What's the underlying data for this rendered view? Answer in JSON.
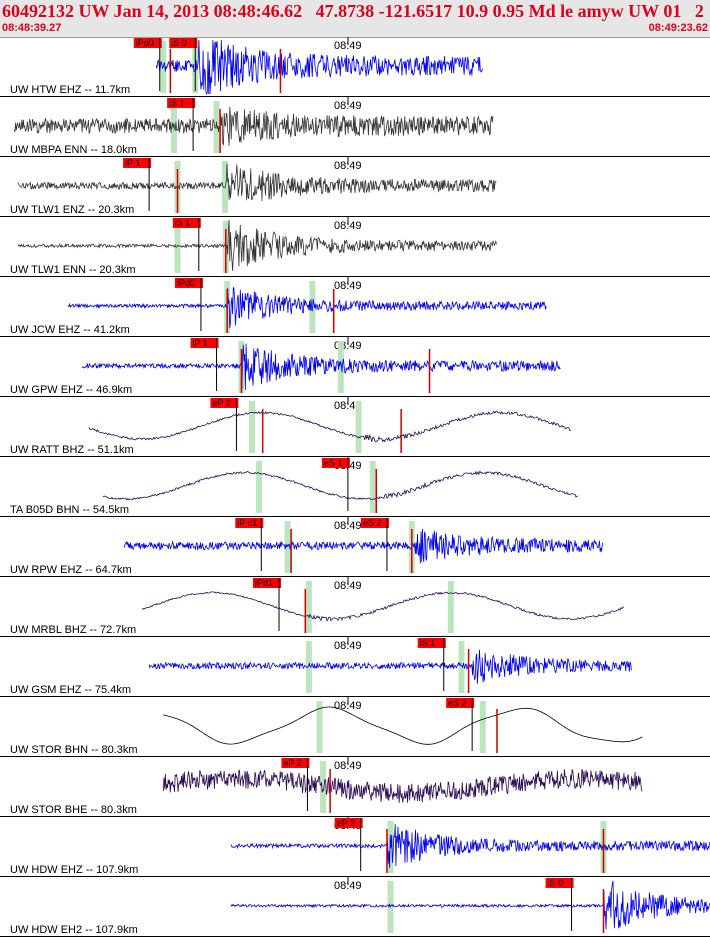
{
  "header": {
    "title": "60492132 UW Jan 14, 2013 08:48:46.62   47.8738 -121.6517 10.9 0.95 Md le amyw UW 01   2",
    "start_time": "08:48:39.27",
    "end_time": "08:49:23.62"
  },
  "colors": {
    "header_text": "#e0001a",
    "header_bg": "#e6e6e6",
    "pick_box": "#ff0000",
    "pick_line": "#cc0000",
    "window": "#bde5bd",
    "trace_blue": "#0000ee",
    "trace_purple": "#2a0a55",
    "trace_gray": "#333333"
  },
  "chart_data": {
    "type": "line",
    "x_axis": {
      "start": "08:48:39.27",
      "end": "08:49:23.62",
      "minute_tick": "08:49"
    },
    "traces": [
      {
        "label": "UW HTW EHZ -- 11.7km",
        "color": "blue",
        "freq": "high",
        "s": 0.22,
        "e": 0.68,
        "onset": 0.28,
        "amp": 0.18,
        "env": 0.55,
        "picks": [
          {
            "label": "iPd0",
            "t": 0.225
          },
          {
            "label": "iS 0",
            "t": 0.275
          }
        ],
        "windows": [
          0.23,
          0.275
        ],
        "drops": [
          0.24,
          0.395
        ]
      },
      {
        "label": "UW MBPA ENN -- 18.0km",
        "color": "gray",
        "freq": "high",
        "s": 0.02,
        "e": 0.695,
        "onset": 0.31,
        "amp": 0.35,
        "env": 0.35,
        "picks": [
          {
            "label": "iS 1",
            "t": 0.272
          }
        ],
        "windows": [
          0.245,
          0.305
        ],
        "drops": [
          0.31
        ]
      },
      {
        "label": "UW TLW1 ENZ -- 20.3km",
        "color": "gray",
        "freq": "high",
        "s": 0.025,
        "e": 0.7,
        "onset": 0.318,
        "amp": 0.14,
        "env": 0.4,
        "picks": [
          {
            "label": "iP 1",
            "t": 0.21
          }
        ],
        "windows": [
          0.25,
          0.317
        ],
        "drops": [
          0.25
        ]
      },
      {
        "label": "UW TLW1 ENN -- 20.3km",
        "color": "gray",
        "freq": "high",
        "s": 0.025,
        "e": 0.7,
        "onset": 0.32,
        "amp": 0.06,
        "env": 0.45,
        "picks": [
          {
            "label": "iS 1",
            "t": 0.28
          }
        ],
        "windows": [
          0.25,
          0.318
        ],
        "drops": [
          0.318
        ]
      },
      {
        "label": "UW JCW EHZ -- 41.2km",
        "color": "blue",
        "freq": "high",
        "s": 0.095,
        "e": 0.77,
        "onset": 0.32,
        "amp": 0.08,
        "env": 0.35,
        "picks": [
          {
            "label": "iPd0",
            "t": 0.283
          }
        ],
        "windows": [
          0.32,
          0.44
        ],
        "drops": [
          0.32,
          0.47
        ]
      },
      {
        "label": "UW GPW EHZ -- 46.9km",
        "color": "blue",
        "freq": "high",
        "s": 0.115,
        "e": 0.79,
        "onset": 0.34,
        "amp": 0.1,
        "env": 0.4,
        "picks": [
          {
            "label": "iP 1",
            "t": 0.305
          }
        ],
        "windows": [
          0.34,
          0.48
        ],
        "drops": [
          0.34,
          0.605
        ]
      },
      {
        "label": "UW RATT BHZ -- 51.1km",
        "color": "purple",
        "freq": "low",
        "s": 0.125,
        "e": 0.805,
        "onset": 0.51,
        "amp": 0.3,
        "env": 0.45,
        "picks": [
          {
            "label": "eP 2",
            "t": 0.333
          }
        ],
        "windows": [
          0.355,
          0.505
        ],
        "drops": [
          0.37,
          0.565
        ]
      },
      {
        "label": "TA B05D BHN -- 54.5km",
        "color": "purple",
        "freq": "low",
        "s": 0.145,
        "e": 0.815,
        "onset": 0.54,
        "amp": 0.4,
        "env": 0.35,
        "picks": [
          {
            "label": "eS 1",
            "t": 0.49
          }
        ],
        "windows": [
          0.365,
          0.525
        ],
        "drops": [
          0.53
        ]
      },
      {
        "label": "UW RPW EHZ -- 64.7km",
        "color": "blue",
        "freq": "high",
        "s": 0.175,
        "e": 0.85,
        "onset": 0.585,
        "amp": 0.22,
        "env": 0.3,
        "picks": [
          {
            "label": "iP c1",
            "t": 0.368
          },
          {
            "label": "eS 2",
            "t": 0.545
          }
        ],
        "windows": [
          0.405,
          0.58
        ],
        "drops": [
          0.41,
          0.58
        ]
      },
      {
        "label": "UW MRBL BHZ -- 72.7km",
        "color": "purple",
        "freq": "low",
        "s": 0.2,
        "e": 0.88,
        "onset": 0.43,
        "amp": 0.35,
        "env": 0.3,
        "picks": [
          {
            "label": "iPd1",
            "t": 0.393
          }
        ],
        "windows": [
          0.435,
          0.635
        ],
        "drops": [
          0.43
        ]
      },
      {
        "label": "UW GSM EHZ -- 75.4km",
        "color": "blue",
        "freq": "high",
        "s": 0.21,
        "e": 0.89,
        "onset": 0.665,
        "amp": 0.18,
        "env": 0.3,
        "picks": [
          {
            "label": "iS 1",
            "t": 0.625
          }
        ],
        "windows": [
          0.435,
          0.65
        ],
        "drops": [
          0.66
        ]
      },
      {
        "label": "UW STOR BHN -- 80.3km",
        "color": "black",
        "freq": "low",
        "s": 0.23,
        "e": 0.905,
        "onset": 0.7,
        "amp": 0.0,
        "env": 0.2,
        "picks": [
          {
            "label": "eS 2",
            "t": 0.665
          }
        ],
        "windows": [
          0.45,
          0.68
        ],
        "drops": [
          0.7
        ]
      },
      {
        "label": "UW STOR BHE -- 80.3km",
        "color": "purple",
        "freq": "noisy",
        "s": 0.23,
        "e": 0.905,
        "onset": 0.38,
        "amp": 0.25,
        "env": 0.3,
        "picks": [
          {
            "label": "eP 2",
            "t": 0.433
          }
        ],
        "windows": [
          0.455
        ],
        "drops": [
          0.465
        ]
      },
      {
        "label": "UW HDW EHZ -- 107.9km",
        "color": "blue",
        "freq": "high",
        "s": 0.325,
        "e": 1.0,
        "onset": 0.545,
        "amp": 0.08,
        "env": 0.4,
        "picks": [
          {
            "label": "eP 2",
            "t": 0.508
          }
        ],
        "windows": [
          0.55,
          0.85
        ],
        "drops": [
          0.545,
          0.85
        ]
      },
      {
        "label": "UW HDW EH2 -- 107.9km",
        "color": "blue",
        "freq": "high",
        "s": 0.325,
        "e": 1.0,
        "onset": 0.85,
        "amp": 0.05,
        "env": 0.45,
        "picks": [
          {
            "label": "iS 0",
            "t": 0.805
          }
        ],
        "windows": [
          0.55
        ],
        "drops": [
          0.85
        ]
      }
    ]
  }
}
